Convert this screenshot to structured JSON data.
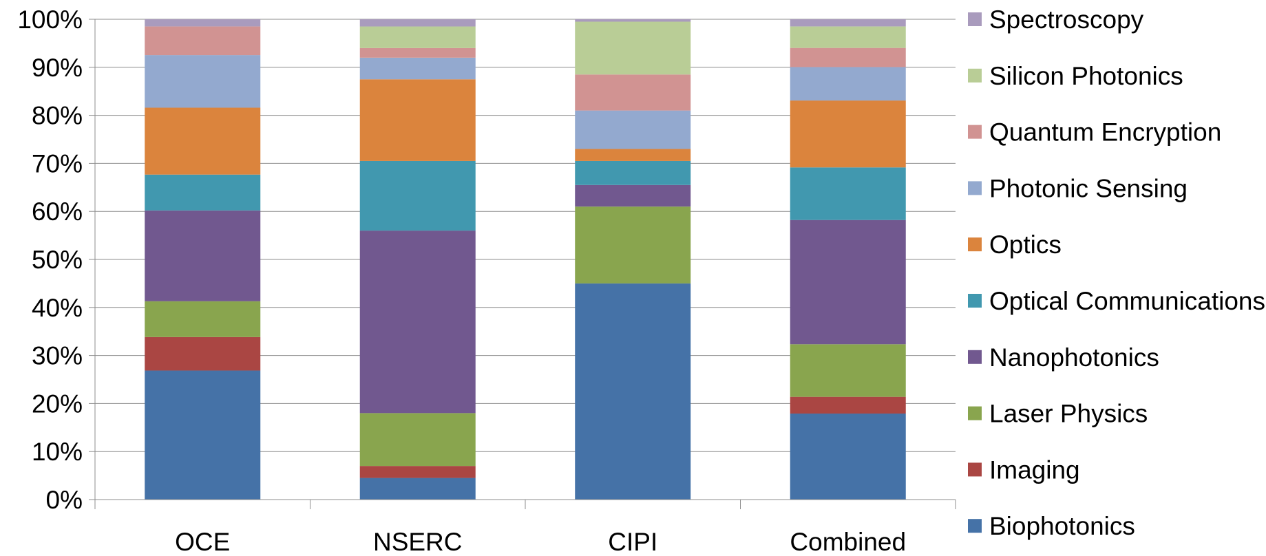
{
  "chart_data": {
    "type": "bar",
    "stacked": "percent",
    "title": "",
    "xlabel": "",
    "ylabel": "",
    "ylim": [
      0,
      100
    ],
    "yticks": [
      "0%",
      "10%",
      "20%",
      "30%",
      "40%",
      "50%",
      "60%",
      "70%",
      "80%",
      "90%",
      "100%"
    ],
    "grid": "horizontal",
    "legend_position": "right",
    "categories": [
      "OCE",
      "NSERC",
      "CIPI",
      "Combined"
    ],
    "series": [
      {
        "name": "Biophotonics",
        "color": "#4572A7",
        "values": [
          27,
          4.5,
          45,
          18
        ]
      },
      {
        "name": "Imaging",
        "color": "#AA4643",
        "values": [
          7,
          2.5,
          0,
          3.5
        ]
      },
      {
        "name": "Laser Physics",
        "color": "#89A54E",
        "values": [
          7.5,
          11,
          16,
          11
        ]
      },
      {
        "name": "Nanophotonics",
        "color": "#71588F",
        "values": [
          19,
          38,
          4.5,
          26
        ]
      },
      {
        "name": "Optical Communications",
        "color": "#4198AF",
        "values": [
          7.5,
          14.5,
          5,
          11
        ]
      },
      {
        "name": "Optics",
        "color": "#DB843D",
        "values": [
          14,
          17,
          2.5,
          14
        ]
      },
      {
        "name": "Photonic Sensing",
        "color": "#93A9CF",
        "values": [
          11,
          4.5,
          8,
          7
        ]
      },
      {
        "name": "Quantum Encryption",
        "color": "#D19392",
        "values": [
          6,
          2,
          7.5,
          4
        ]
      },
      {
        "name": "Silicon Photonics",
        "color": "#B9CD96",
        "values": [
          0,
          4.5,
          11,
          4.5
        ]
      },
      {
        "name": "Spectroscopy",
        "color": "#A99BBD",
        "values": [
          1.5,
          1.5,
          0.5,
          1.5
        ]
      }
    ]
  }
}
